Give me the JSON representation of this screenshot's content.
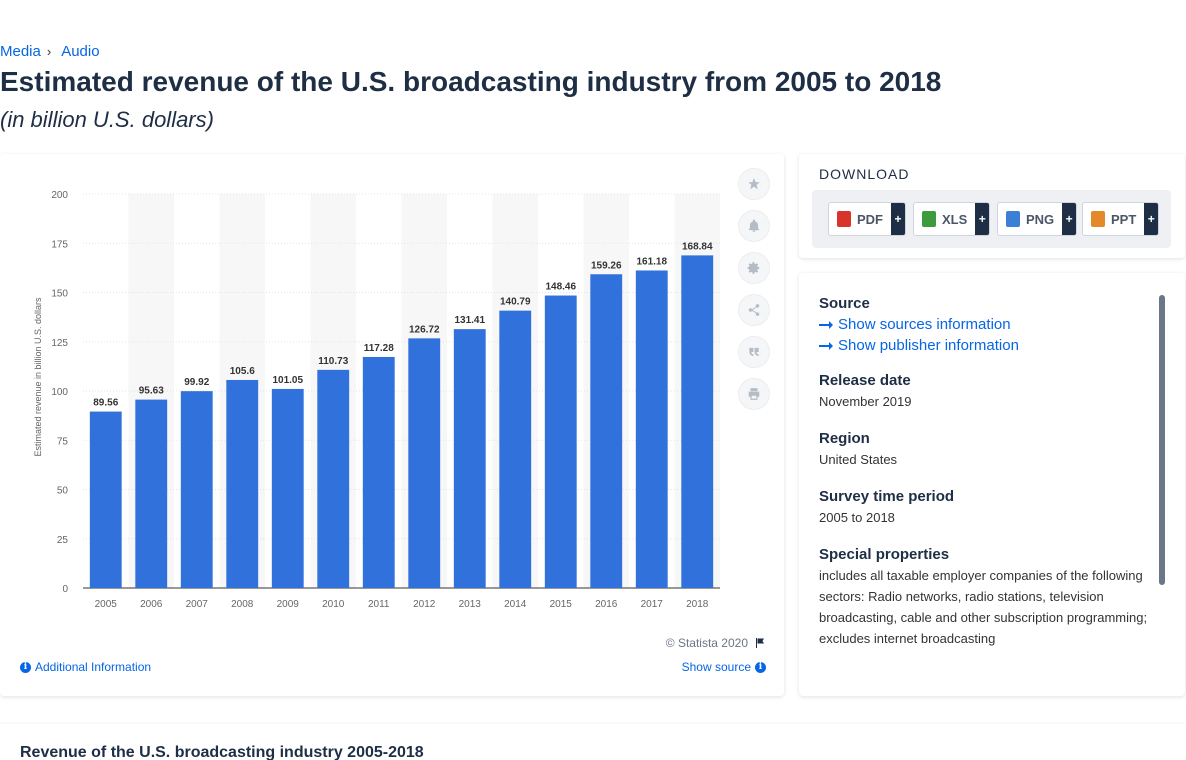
{
  "breadcrumb": {
    "item1": "Media",
    "sep": "›",
    "item2": "Audio"
  },
  "title": "Estimated revenue of the U.S. broadcasting industry from 2005 to 2018",
  "subtitle": "(in billion U.S. dollars)",
  "colors": {
    "accent": "#0666e5",
    "bar": "#3171db",
    "text": "#1e2e45"
  },
  "chart_data": {
    "type": "bar",
    "categories": [
      "2005",
      "2006",
      "2007",
      "2008",
      "2009",
      "2010",
      "2011",
      "2012",
      "2013",
      "2014",
      "2015",
      "2016",
      "2017",
      "2018"
    ],
    "values": [
      89.56,
      95.63,
      99.92,
      105.6,
      101.05,
      110.73,
      117.28,
      126.72,
      131.41,
      140.79,
      148.46,
      159.26,
      161.18,
      168.84
    ],
    "value_labels": [
      "89.56",
      "95.63",
      "99.92",
      "105.6",
      "101.05",
      "110.73",
      "117.28",
      "126.72",
      "131.41",
      "140.79",
      "148.46",
      "159.26",
      "161.18",
      "168.84"
    ],
    "ylabel": "Estimated revenue in billion U.S. dollars",
    "xlabel": "",
    "ylim": [
      0,
      200
    ],
    "yticks": [
      0,
      25,
      50,
      75,
      100,
      125,
      150,
      175,
      200
    ],
    "grid": true
  },
  "tools": {
    "favorite": "star-icon",
    "alert": "bell-icon",
    "settings": "gear-icon",
    "share": "share-icon",
    "cite": "quote-icon",
    "print": "print-icon"
  },
  "chart_footer": {
    "copyright": "© Statista 2020",
    "additional_info": "Additional Information",
    "show_source": "Show source"
  },
  "download": {
    "title": "DOWNLOAD",
    "pdf": "PDF",
    "xls": "XLS",
    "png": "PNG",
    "ppt": "PPT",
    "plus": "+"
  },
  "info": {
    "source_label": "Source",
    "show_sources": "Show sources information",
    "show_publisher": "Show publisher information",
    "release_label": "Release date",
    "release_value": "November 2019",
    "region_label": "Region",
    "region_value": "United States",
    "period_label": "Survey time period",
    "period_value": "2005 to 2018",
    "special_label": "Special properties",
    "special_value": "includes all taxable employer companies of the following sectors: Radio networks, radio stations, television broadcasting, cable and other subscription programming; excludes internet broadcasting"
  },
  "bottom": {
    "title": "Revenue of the U.S. broadcasting industry 2005-2018"
  }
}
